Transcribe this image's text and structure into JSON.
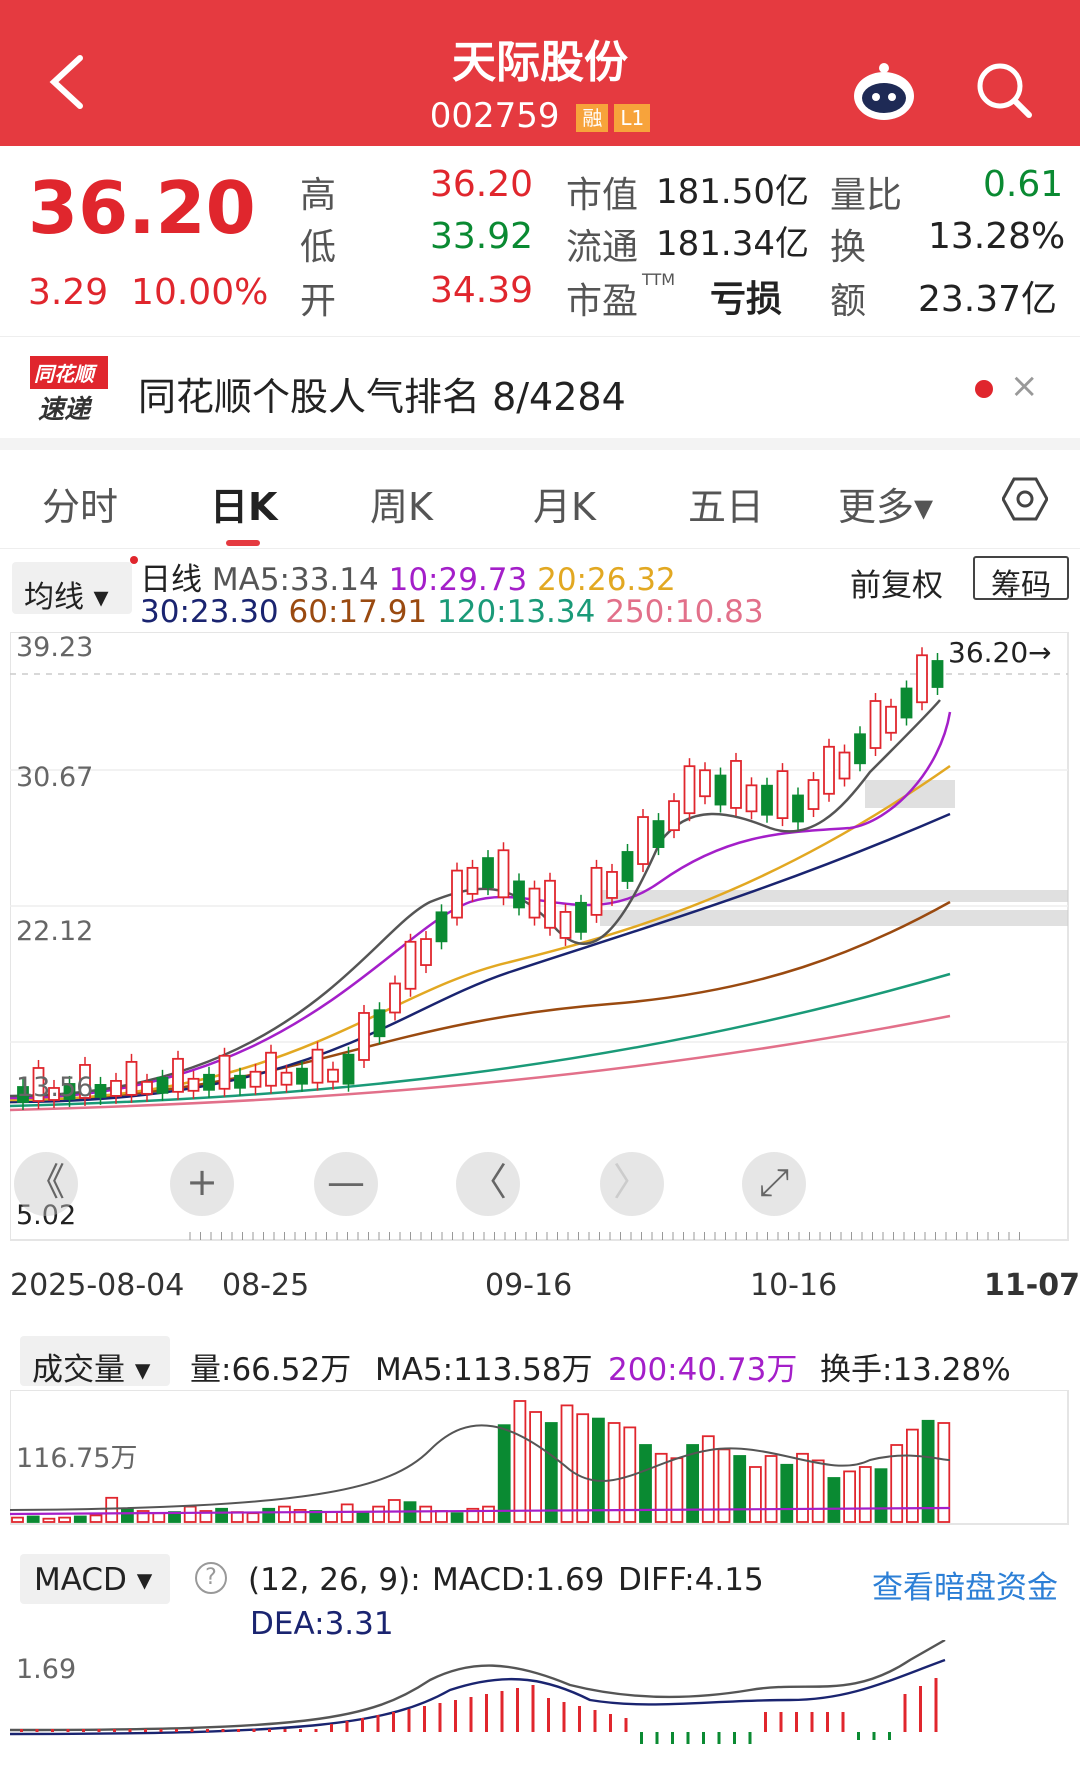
{
  "header": {
    "title": "天际股份",
    "code": "002759",
    "badge1": "融",
    "badge2": "L1",
    "bg": "#e53a40"
  },
  "quote": {
    "price": "36.20",
    "change": "3.29",
    "change_pct": "10.00%",
    "high_label": "高",
    "high": "36.20",
    "low_label": "低",
    "low": "33.92",
    "open_label": "开",
    "open": "34.39",
    "mcap_label": "市值",
    "mcap": "181.50亿",
    "float_label": "流通",
    "float": "181.34亿",
    "pe_label": "市盈",
    "pe_sup": "TTM",
    "pe": "亏损",
    "vr_label": "量比",
    "vr": "0.61",
    "turn_label": "换",
    "turn": "13.28%",
    "amt_label": "额",
    "amt": "23.37亿"
  },
  "news": {
    "logo1": "同花顺",
    "logo2": "速递",
    "text": "同花顺个股人气排名 8/4284",
    "close": "×"
  },
  "tabs": [
    "分时",
    "日K",
    "周K",
    "月K",
    "五日",
    "更多▾"
  ],
  "ma": {
    "select": "均线 ▾",
    "line": "日线",
    "ma5": "MA5:33.14",
    "ma10": "10:29.73",
    "ma20": "20:26.32",
    "ma30": "30:23.30",
    "ma60": "60:17.91",
    "ma120": "120:13.34",
    "ma250": "250:10.83",
    "fuquan": "前复权",
    "chouma": "筹码"
  },
  "kchart": {
    "ylabels": [
      "39.23",
      "30.67",
      "22.12",
      "13.56",
      "5.02"
    ],
    "last": "36.20→"
  },
  "dates": [
    "2025-08-04",
    "08-25",
    "09-16",
    "10-16",
    "11-07"
  ],
  "vol": {
    "select": "成交量 ▾",
    "vol": "量:66.52万",
    "ma5": "MA5:113.58万",
    "ma200": "200:40.73万",
    "turn": "换手:13.28%",
    "ylabel": "116.75万"
  },
  "macd": {
    "select": "MACD ▾",
    "q": "?",
    "params": "(12, 26, 9):",
    "macd": "MACD:1.69",
    "diff": "DIFF:4.15",
    "dea": "DEA:3.31",
    "link": "查看暗盘资金",
    "ylabel": "1.69"
  },
  "controls": [
    "《",
    "+",
    "—",
    "〈",
    "〉",
    "⤢"
  ],
  "colors": {
    "up": "#e0262d",
    "down": "#0a8a32"
  }
}
